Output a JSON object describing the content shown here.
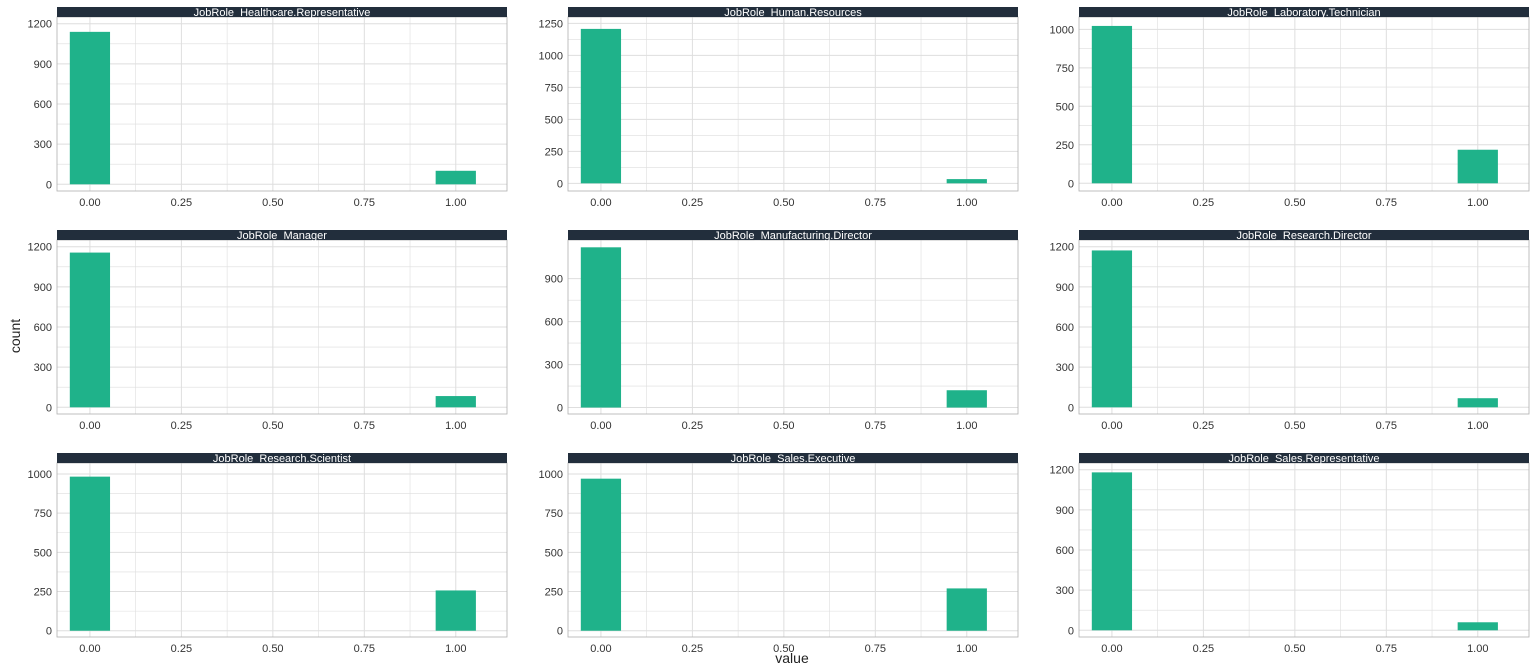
{
  "chart_data": {
    "type": "bar",
    "xlabel": "value",
    "ylabel": "count",
    "x_ticks": [
      0.0,
      0.25,
      0.5,
      0.75,
      1.0
    ],
    "x_tick_labels": [
      "0.00",
      "0.25",
      "0.50",
      "0.75",
      "1.00"
    ],
    "xlim": [
      -0.09,
      1.14
    ],
    "bar_width": 0.11,
    "grid": true,
    "colors": {
      "bar": "#1fb28a",
      "strip": "#222e3c",
      "grid": "#dedede",
      "panel_border": "#b0b0b0"
    },
    "panels": [
      {
        "title": "JobRole_Healthcare.Representative",
        "x": [
          0,
          1
        ],
        "values": [
          1139,
          101
        ],
        "ylim": [
          -50,
          1250
        ],
        "y_ticks": [
          0,
          300,
          600,
          900,
          1200
        ]
      },
      {
        "title": "JobRole_Human.Resources",
        "x": [
          0,
          1
        ],
        "values": [
          1207,
          33
        ],
        "ylim": [
          -60,
          1300
        ],
        "y_ticks": [
          0,
          250,
          500,
          750,
          1000,
          1250
        ]
      },
      {
        "title": "JobRole_Laboratory.Technician",
        "x": [
          0,
          1
        ],
        "values": [
          1022,
          218
        ],
        "ylim": [
          -50,
          1080
        ],
        "y_ticks": [
          0,
          250,
          500,
          750,
          1000
        ]
      },
      {
        "title": "JobRole_Manager",
        "x": [
          0,
          1
        ],
        "values": [
          1156,
          84
        ],
        "ylim": [
          -50,
          1250
        ],
        "y_ticks": [
          0,
          300,
          600,
          900,
          1200
        ]
      },
      {
        "title": "JobRole_Manufacturing.Director",
        "x": [
          0,
          1
        ],
        "values": [
          1119,
          121
        ],
        "ylim": [
          -45,
          1170
        ],
        "y_ticks": [
          0,
          300,
          600,
          900
        ]
      },
      {
        "title": "JobRole_Research.Director",
        "x": [
          0,
          1
        ],
        "values": [
          1172,
          68
        ],
        "ylim": [
          -50,
          1250
        ],
        "y_ticks": [
          0,
          300,
          600,
          900,
          1200
        ]
      },
      {
        "title": "JobRole_Research.Scientist",
        "x": [
          0,
          1
        ],
        "values": [
          983,
          257
        ],
        "ylim": [
          -40,
          1070
        ],
        "y_ticks": [
          0,
          250,
          500,
          750,
          1000
        ]
      },
      {
        "title": "JobRole_Sales.Executive",
        "x": [
          0,
          1
        ],
        "values": [
          970,
          270
        ],
        "ylim": [
          -40,
          1070
        ],
        "y_ticks": [
          0,
          250,
          500,
          750,
          1000
        ]
      },
      {
        "title": "JobRole_Sales.Representative",
        "x": [
          0,
          1
        ],
        "values": [
          1180,
          60
        ],
        "ylim": [
          -50,
          1250
        ],
        "y_ticks": [
          0,
          300,
          600,
          900,
          1200
        ]
      }
    ]
  }
}
